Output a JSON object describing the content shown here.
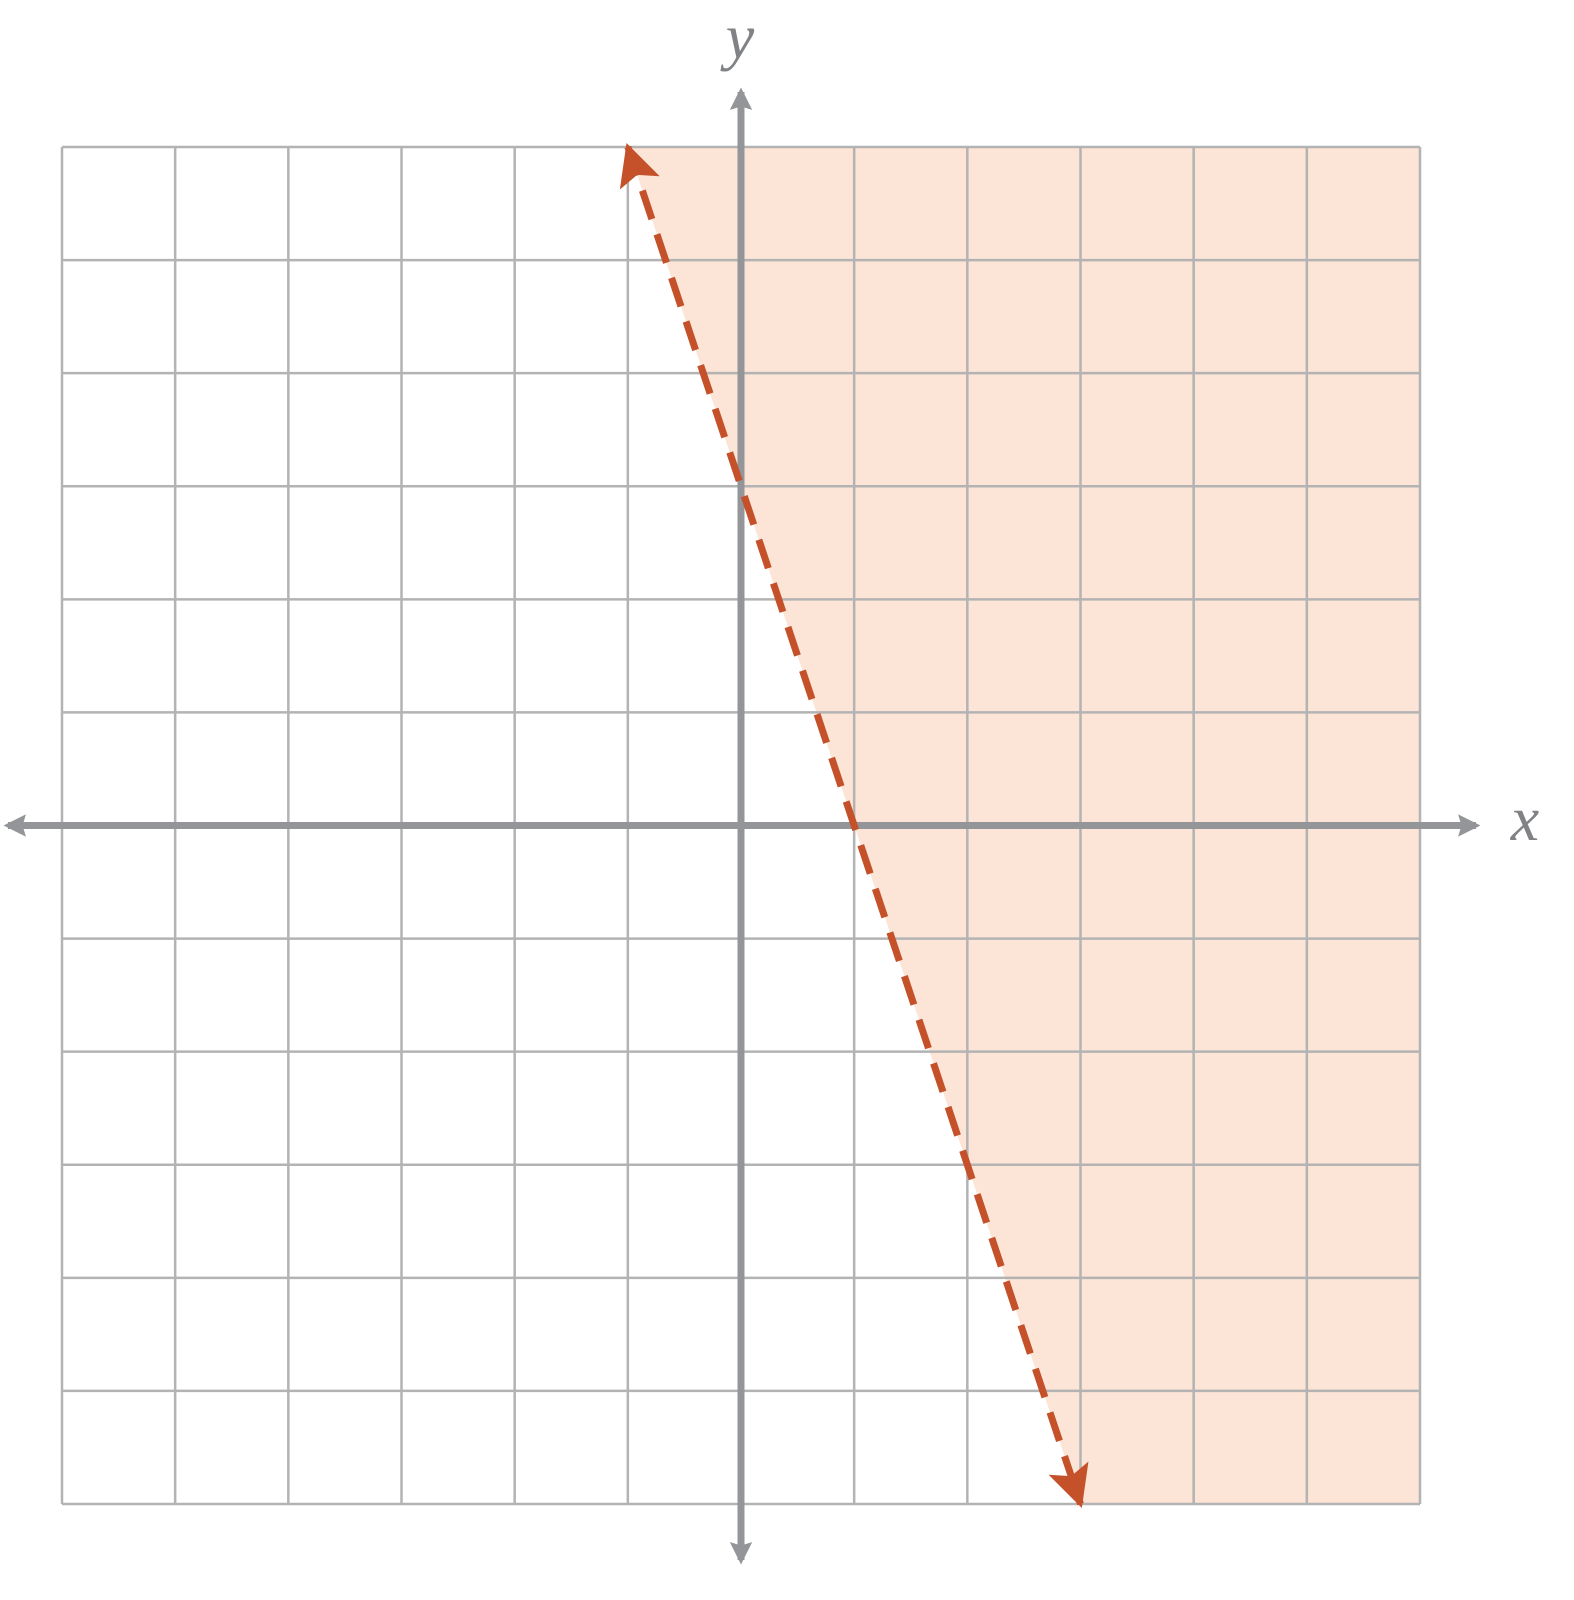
{
  "chart_data": {
    "type": "line",
    "x_label": "x",
    "y_label": "y",
    "xlim": [
      -6,
      6
    ],
    "ylim": [
      -6,
      6
    ],
    "xticks": [
      -6,
      -5,
      -4,
      -3,
      -2,
      -1,
      0,
      1,
      2,
      3,
      4,
      5,
      6
    ],
    "yticks": [
      -6,
      -5,
      -4,
      -3,
      -2,
      -1,
      0,
      1,
      2,
      3,
      4,
      5,
      6
    ],
    "grid": true,
    "dashed": true,
    "shade": "right",
    "fill_color": "#fce4d6",
    "series": [
      {
        "color": "#c4512a",
        "x": [
          -1,
          3
        ],
        "values": [
          6,
          -6
        ]
      }
    ]
  }
}
